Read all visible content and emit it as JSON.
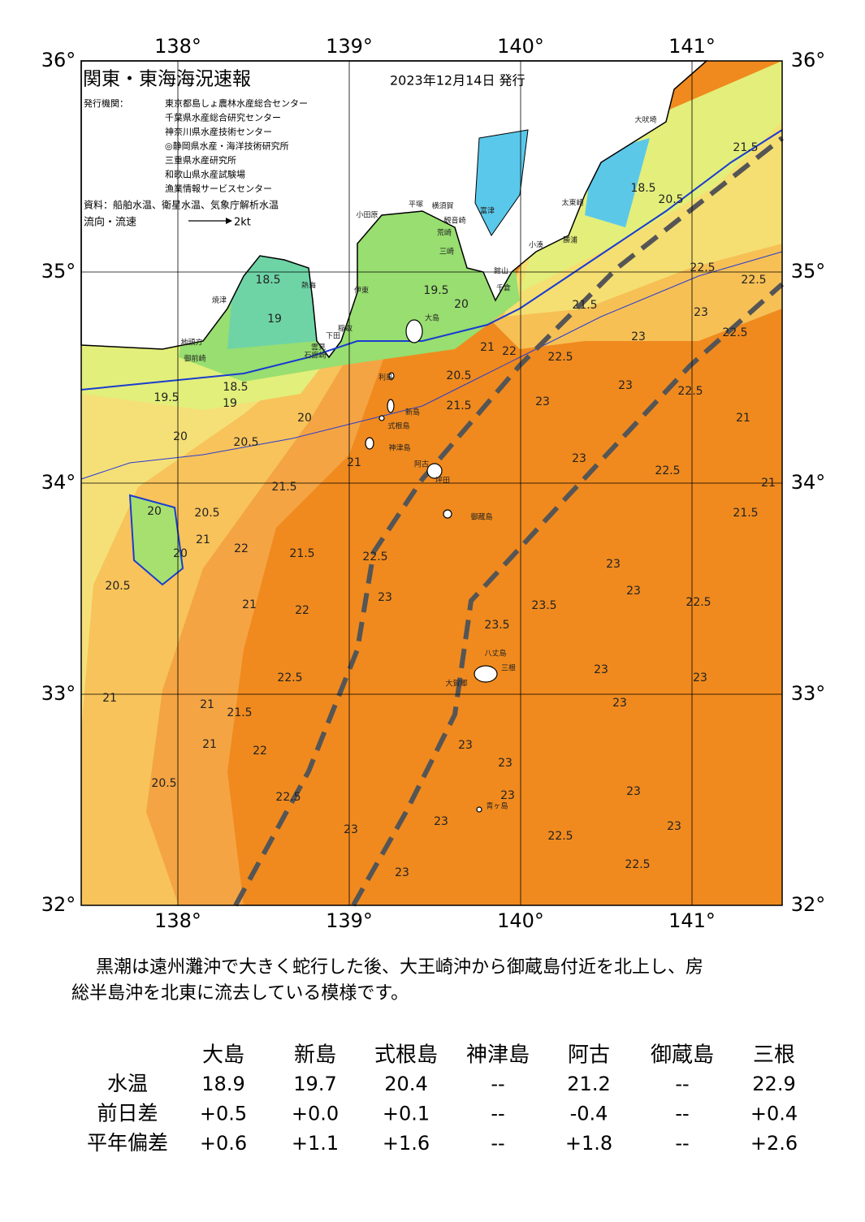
{
  "header": {
    "title": "関東・東海海況速報",
    "date": "2023年12月14日 発行",
    "issuer_label": "発行機関：",
    "issuers": [
      "東京都島しょ農林水産総合センター",
      "千葉県水産総合研究センター",
      "神奈川県水産技術センター",
      "◎静岡県水産・海洋技術研究所",
      "三重県水産研究所",
      "和歌山県水産試験場",
      "漁業情報サービスセンター"
    ],
    "source": "資料：船舶水温、衛星水温、気象庁解析水温",
    "flow_label": "流向・流速",
    "flow_scale": "2kt"
  },
  "map": {
    "lon_ticks": [
      {
        "value": 138,
        "label": "138°"
      },
      {
        "value": 139,
        "label": "139°"
      },
      {
        "value": 140,
        "label": "140°"
      },
      {
        "value": 141,
        "label": "141°"
      }
    ],
    "lat_ticks": [
      {
        "value": 36,
        "label": "36°"
      },
      {
        "value": 35,
        "label": "35°"
      },
      {
        "value": 34,
        "label": "34°"
      },
      {
        "value": 33,
        "label": "33°"
      },
      {
        "value": 32,
        "label": "32°"
      }
    ],
    "places": [
      "大吠埼",
      "太東崎",
      "勝浦",
      "小湊",
      "富津",
      "横須賀",
      "観音崎",
      "平塚",
      "小田原",
      "荒崎",
      "三崎",
      "館山",
      "千倉",
      "伊東",
      "熱海",
      "焼津",
      "地頭方",
      "御前崎",
      "稲取",
      "下田",
      "雲見",
      "石廊崎",
      "大島",
      "利島",
      "新島",
      "式根島",
      "神津島",
      "阿古",
      "坪田",
      "御蔵島",
      "八丈島",
      "三根",
      "大賀郷",
      "青ヶ島"
    ],
    "contour_labels": [
      "21.5",
      "18.5",
      "20.5",
      "22.5",
      "22.5",
      "21.5",
      "23",
      "22.5",
      "23",
      "22.5",
      "23",
      "22.5",
      "21",
      "23",
      "23",
      "22.5",
      "21",
      "21.5",
      "23",
      "23",
      "22.5",
      "23.5",
      "23.5",
      "23",
      "23",
      "23",
      "23",
      "23",
      "23",
      "23",
      "23",
      "22.5",
      "22.5",
      "23",
      "23",
      "23",
      "22.5",
      "22",
      "21.5",
      "21",
      "21",
      "20.5",
      "22.5",
      "22",
      "21",
      "20.5",
      "21",
      "20",
      "21",
      "22",
      "21.5",
      "22.5",
      "23",
      "20.5",
      "20",
      "21.5",
      "21",
      "20.5",
      "20",
      "20",
      "19.5",
      "18.5",
      "19",
      "21.5",
      "20.5",
      "22",
      "21",
      "19.5",
      "20",
      "18.5",
      "19"
    ]
  },
  "caption": [
    "黒潮は遠州灘沖で大きく蛇行した後、大王崎沖から御蔵島付近を北上し、房",
    "総半島沖を北東に流去している模様です。"
  ],
  "table": {
    "columns": [
      "大島",
      "新島",
      "式根島",
      "神津島",
      "阿古",
      "御蔵島",
      "三根"
    ],
    "rows": [
      {
        "label": "水温",
        "values": [
          "18.9",
          "19.7",
          "20.4",
          "--",
          "21.2",
          "--",
          "22.9"
        ]
      },
      {
        "label": "前日差",
        "values": [
          "+0.5",
          "+0.0",
          "+0.1",
          "--",
          "-0.4",
          "--",
          "+0.4"
        ]
      },
      {
        "label": "平年偏差",
        "values": [
          "+0.6",
          "+1.1",
          "+1.6",
          "--",
          "+1.8",
          "--",
          "+2.6"
        ]
      }
    ]
  }
}
